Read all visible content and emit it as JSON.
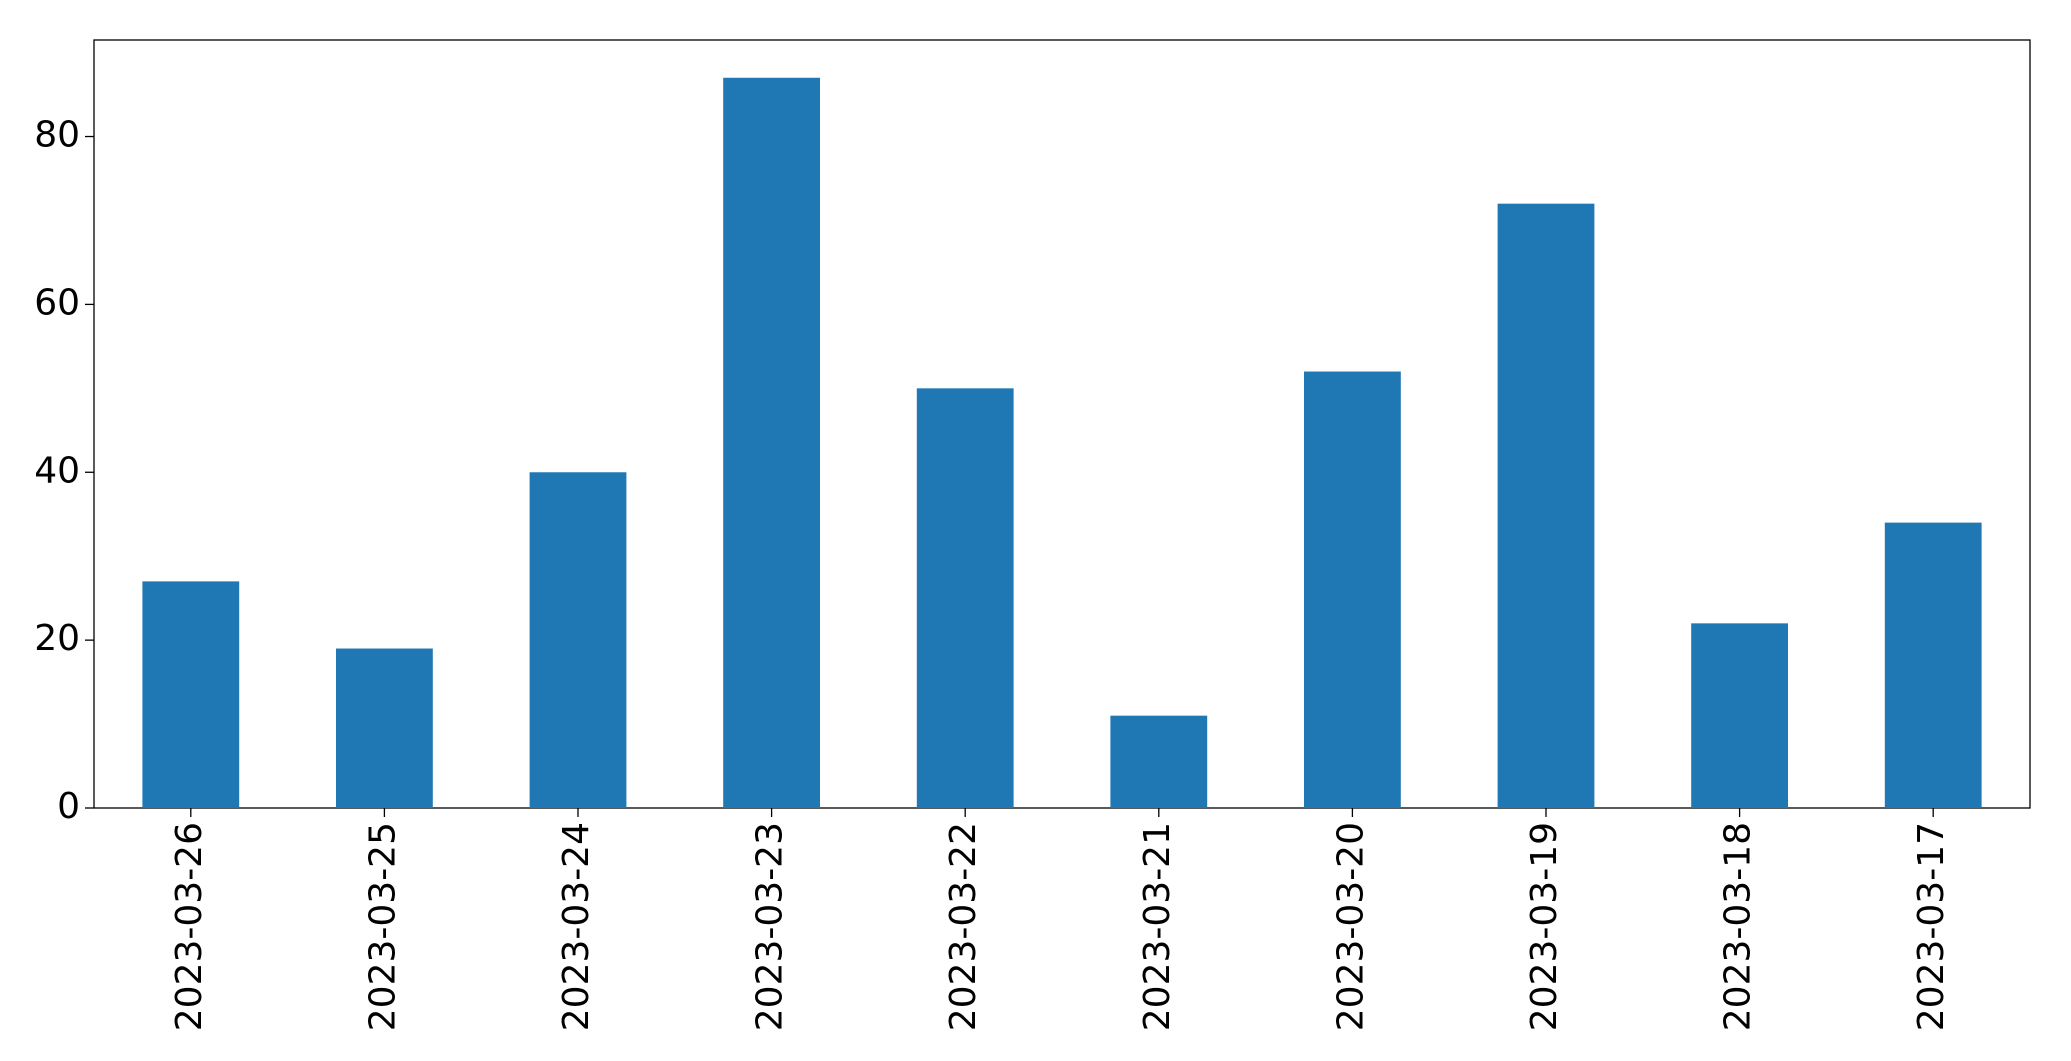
{
  "chart_data": {
    "type": "bar",
    "categories": [
      "2023-03-26",
      "2023-03-25",
      "2023-03-24",
      "2023-03-23",
      "2023-03-22",
      "2023-03-21",
      "2023-03-20",
      "2023-03-19",
      "2023-03-18",
      "2023-03-17"
    ],
    "values": [
      27,
      19,
      40,
      87,
      50,
      11,
      52,
      72,
      22,
      34
    ],
    "color": "#1f77b4",
    "ylim": [
      0,
      91.5
    ],
    "yticks": [
      0,
      20,
      40,
      60,
      80
    ],
    "grid": false
  }
}
